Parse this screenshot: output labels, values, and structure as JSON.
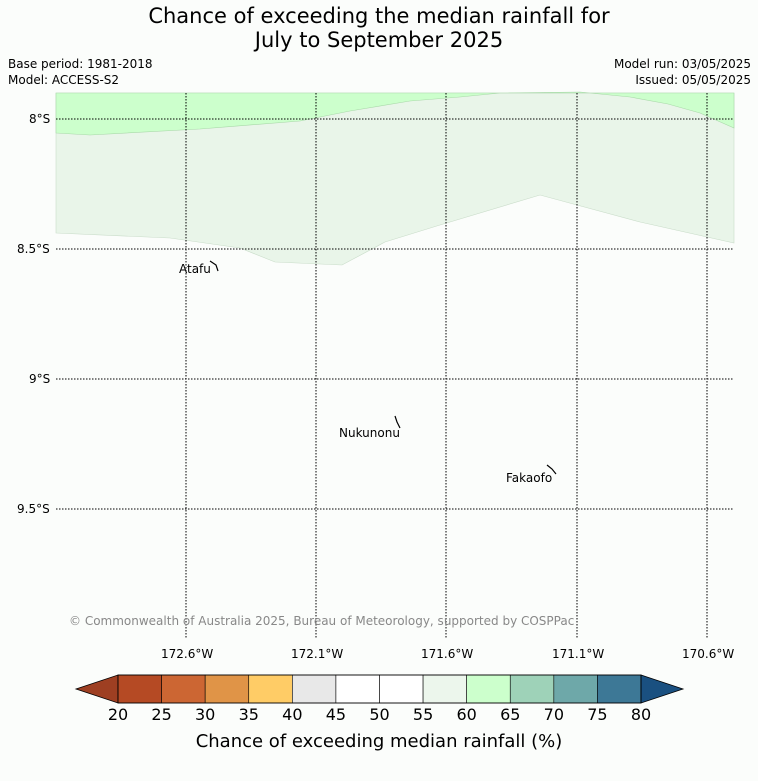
{
  "title": {
    "line1": "Chance of exceeding the median rainfall for",
    "line2": "July to September 2025"
  },
  "meta": {
    "base_period": "Base period: 1981-2018",
    "model": "Model: ACCESS-S2",
    "model_run": "Model run: 03/05/2025",
    "issued": "Issued: 05/05/2025"
  },
  "map": {
    "lat_labels": [
      "8°S",
      "8.5°S",
      "9°S",
      "9.5°S"
    ],
    "lon_labels": [
      "172.6°W",
      "172.1°W",
      "171.6°W",
      "171.1°W",
      "170.6°W"
    ],
    "places": [
      "Atafu",
      "Nukunonu",
      "Fakaofo"
    ],
    "copyright": "© Commonwealth of Australia 2025, Bureau of Meteorology, supported by COSPPac",
    "region_colors": {
      "60-65": "#ccffcc",
      "55-60": "#e9f5e9",
      "50-55": "#fbfdfb"
    }
  },
  "colorbar": {
    "ticks": [
      "20",
      "25",
      "30",
      "35",
      "40",
      "45",
      "50",
      "55",
      "60",
      "65",
      "70",
      "75",
      "80"
    ],
    "colors": [
      "#b54a24",
      "#cc6633",
      "#e09447",
      "#ffcc66",
      "#e8e8e8",
      "#ffffff",
      "#ffffff",
      "#ecf6ec",
      "#ccffcc",
      "#9ed2b8",
      "#6ea8a9",
      "#3d7896"
    ],
    "low_color": "#9e3f22",
    "high_color": "#1a5080",
    "title": "Chance of exceeding median rainfall (%)"
  }
}
